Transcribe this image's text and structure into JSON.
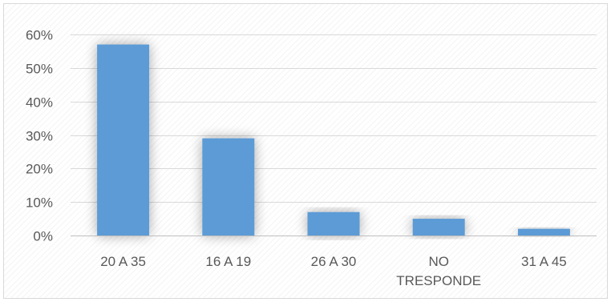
{
  "chart_data": {
    "type": "bar",
    "title": "",
    "xlabel": "",
    "ylabel": "",
    "categories": [
      "20 A 35",
      "16 A 19",
      "26 A 30",
      "NO TRESPONDE",
      "31 A 45"
    ],
    "category_lines": [
      [
        "20 A 35"
      ],
      [
        "16 A 19"
      ],
      [
        "26 A 30"
      ],
      [
        "NO",
        "TRESPONDE"
      ],
      [
        "31 A 45"
      ]
    ],
    "series": [
      {
        "values": [
          0.57,
          0.29,
          0.07,
          0.05,
          0.02
        ]
      }
    ],
    "ylim": [
      0,
      0.6
    ],
    "yticks": [
      0,
      0.1,
      0.2,
      0.3,
      0.4,
      0.5,
      0.6
    ],
    "ytick_labels": [
      "0%",
      "10%",
      "20%",
      "30%",
      "40%",
      "50%",
      "60%"
    ],
    "grid": true,
    "legend": "none",
    "colors": {
      "bar": "#5b9bd5",
      "grid": "#d9d9d9",
      "axis": "#bfbfbf",
      "text": "#595959"
    }
  }
}
